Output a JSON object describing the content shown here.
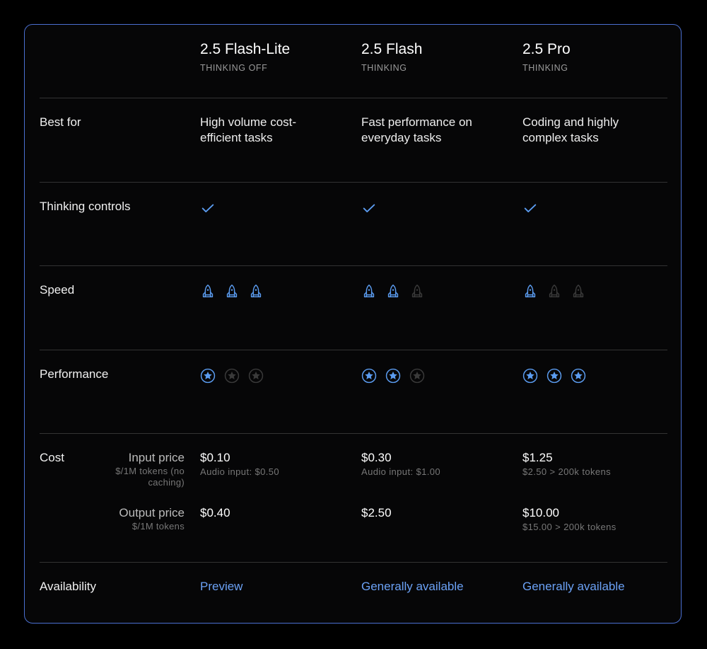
{
  "colors": {
    "accent": "#5b9cf0",
    "inactive": "#3a3a3a",
    "border": "#4a6fd0"
  },
  "models": [
    {
      "name": "2.5 Flash-Lite",
      "mode": "THINKING OFF",
      "best_for": "High volume cost-efficient tasks",
      "thinking_controls": true,
      "speed": 3,
      "performance": 1,
      "input_price": "$0.10",
      "input_note": "Audio input: $0.50",
      "output_price": "$0.40",
      "output_note": "",
      "availability": "Preview"
    },
    {
      "name": "2.5 Flash",
      "mode": "THINKING",
      "best_for": "Fast performance on everyday tasks",
      "thinking_controls": true,
      "speed": 2,
      "performance": 2,
      "input_price": "$0.30",
      "input_note": "Audio input: $1.00",
      "output_price": "$2.50",
      "output_note": "",
      "availability": "Generally available"
    },
    {
      "name": "2.5 Pro",
      "mode": "THINKING",
      "best_for": "Coding and highly complex tasks",
      "thinking_controls": true,
      "speed": 1,
      "performance": 3,
      "input_price": "$1.25",
      "input_note": "$2.50 > 200k tokens",
      "output_price": "$10.00",
      "output_note": "$15.00 > 200k tokens",
      "availability": "Generally available"
    }
  ],
  "rows": {
    "best_for": "Best for",
    "thinking_controls": "Thinking controls",
    "speed": "Speed",
    "performance": "Performance",
    "cost": "Cost",
    "availability": "Availability"
  },
  "cost": {
    "input_label": "Input price",
    "input_sub": "$/1M tokens (no caching)",
    "output_label": "Output price",
    "output_sub": "$/1M tokens"
  },
  "icons": {
    "check": "check-icon",
    "speed": "rocket-icon",
    "performance": "star-circle-icon"
  }
}
